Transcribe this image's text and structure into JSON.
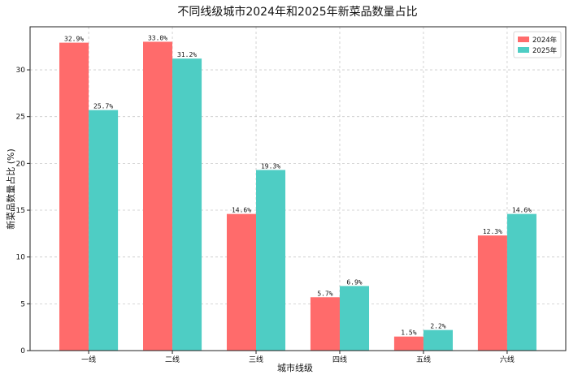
{
  "chart_data": {
    "type": "bar",
    "title": "不同线级城市2024年和2025年新菜品数量占比",
    "xlabel": "城市线级",
    "ylabel": "新菜品数量占比 (%)",
    "categories": [
      "一线",
      "二线",
      "三线",
      "四线",
      "五线",
      "六线"
    ],
    "series": [
      {
        "name": "2024年",
        "color": "#FF6B6B",
        "values": [
          32.9,
          33.0,
          14.6,
          5.7,
          1.5,
          12.3
        ],
        "labels": [
          "32.9%",
          "33.0%",
          "14.6%",
          "5.7%",
          "1.5%",
          "12.3%"
        ]
      },
      {
        "name": "2025年",
        "color": "#4ECDC4",
        "values": [
          25.7,
          31.2,
          19.3,
          6.9,
          2.2,
          14.6
        ],
        "labels": [
          "25.7%",
          "31.2%",
          "19.3%",
          "6.9%",
          "2.2%",
          "14.6%"
        ]
      }
    ],
    "ylim": [
      0,
      34.6
    ],
    "yticks": [
      0,
      5,
      10,
      15,
      20,
      25,
      30
    ],
    "ytick_labels": [
      "0",
      "5",
      "10",
      "15",
      "20",
      "25",
      "30"
    ],
    "grid": true,
    "legend": "top-right"
  }
}
